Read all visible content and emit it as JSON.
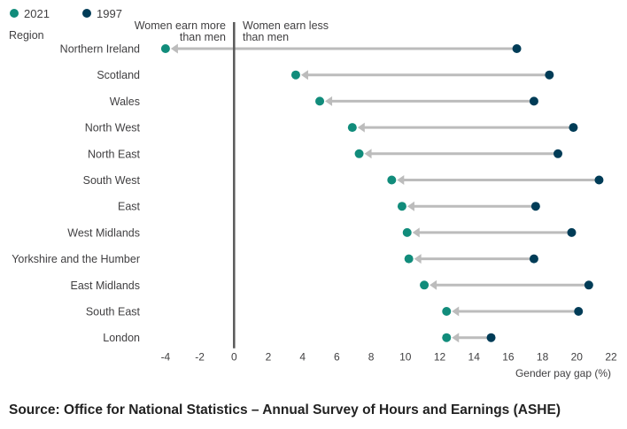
{
  "chart_data": {
    "type": "dumbbell",
    "y_axis_title": "Region",
    "xlabel": "Gender pay gap (%)",
    "xlim": [
      -5,
      22
    ],
    "x_ticks": [
      -4,
      -2,
      0,
      2,
      4,
      6,
      8,
      10,
      12,
      14,
      16,
      18,
      20,
      22
    ],
    "annotations": {
      "left": [
        "Women earn more",
        "than men"
      ],
      "right": [
        "Women earn less",
        "than men"
      ]
    },
    "legend": [
      {
        "name": "2021",
        "color": "#118c7b"
      },
      {
        "name": "1997",
        "color": "#003c57"
      }
    ],
    "arrow_color": "#bcbcbc",
    "categories": [
      "Northern Ireland",
      "Scotland",
      "Wales",
      "North West",
      "North East",
      "South West",
      "East",
      "West Midlands",
      "Yorkshire and the Humber",
      "East Midlands",
      "South East",
      "London"
    ],
    "series": [
      {
        "name": "2021",
        "values": [
          -4.0,
          3.6,
          5.0,
          6.9,
          7.3,
          9.2,
          9.8,
          10.1,
          10.2,
          11.1,
          12.4,
          12.4
        ]
      },
      {
        "name": "1997",
        "values": [
          16.5,
          18.4,
          17.5,
          19.8,
          18.9,
          21.3,
          17.6,
          19.7,
          17.5,
          20.7,
          20.1,
          15.0
        ]
      }
    ]
  },
  "source": "Source: Office for National Statistics – Annual Survey of Hours and Earnings (ASHE)"
}
